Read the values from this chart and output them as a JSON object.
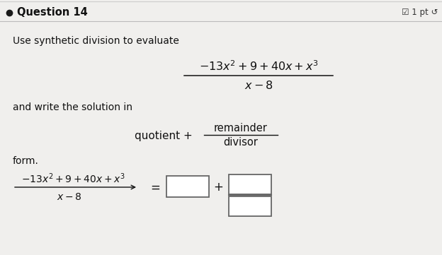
{
  "bg_color": "#f0efed",
  "header_bg": "#f0efed",
  "title": "Question 14",
  "pts_text": "☑ 1 pt ↺",
  "line1": "Use synthetic division to evaluate",
  "line2": "and write the solution in",
  "form_label": "form.",
  "fig_w": 6.24,
  "fig_h": 3.61,
  "dpi": 100
}
